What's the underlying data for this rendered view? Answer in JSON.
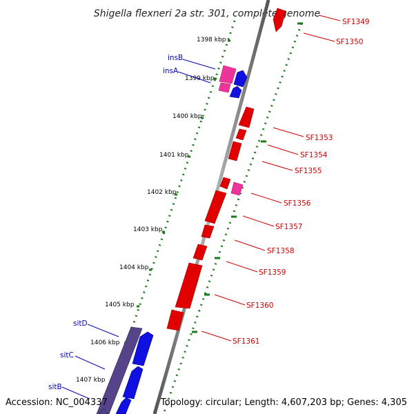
{
  "title": "Shigella flexneri 2a str. 301, complete genome",
  "footer": {
    "accession": "Accession: NC_004337",
    "topology": "Topology: circular; Length: 4,607,203 bp; Genes: 4,305"
  },
  "colors": {
    "backbone": "#888888",
    "tick": "#1a7a1a",
    "gene_forward": "#e00000",
    "gene_reverse": "#1010e0",
    "gene_mobile": "#ee3399",
    "gene_dark": "#55448a",
    "label_red": "#cc0000",
    "label_blue": "#0000bb"
  },
  "kbp_labels": [
    "1398 kbp",
    "1399 kbp",
    "1400 kbp",
    "1401 kbp",
    "1402 kbp",
    "1403 kbp",
    "1404 kbp",
    "1405 kbp",
    "1406 kbp",
    "1407 kbp"
  ],
  "gene_labels_right": [
    "SF1349",
    "SF1350",
    "SF1353",
    "SF1354",
    "SF1355",
    "SF1356",
    "SF1357",
    "SF1358",
    "SF1359",
    "SF1360",
    "SF1361"
  ],
  "gene_labels_left": [
    "insB",
    "insA",
    "sitD",
    "sitC",
    "sitB"
  ]
}
